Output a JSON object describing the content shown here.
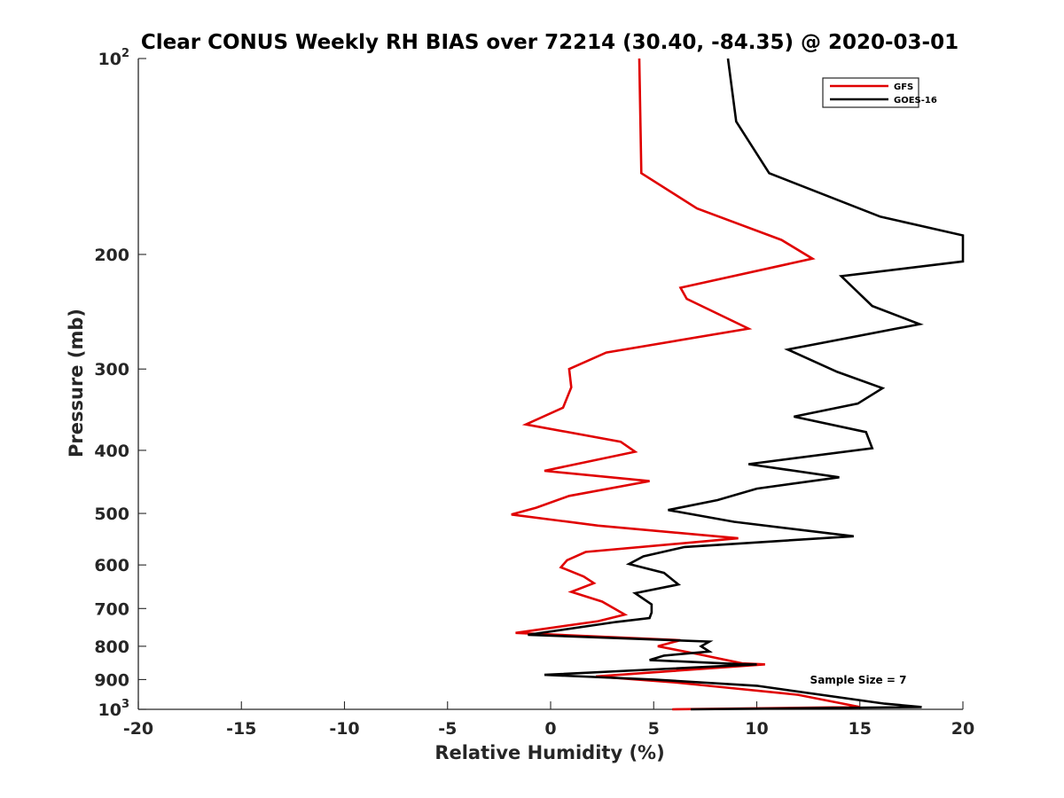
{
  "chart_data": {
    "type": "line",
    "title": "Clear CONUS Weekly RH BIAS over 72214 (30.40, -84.35) @ 2020-03-01",
    "xlabel": "Relative Humidity (%)",
    "ylabel": "Pressure (mb)",
    "xlim": [
      -20,
      20
    ],
    "ylim": [
      100,
      1000
    ],
    "yscale": "log",
    "y_reversed": true,
    "x_ticks": [
      -20,
      -15,
      -10,
      -5,
      0,
      5,
      10,
      15,
      20
    ],
    "x_tick_labels": [
      "-20",
      "-15",
      "-10",
      "-5",
      "0",
      "5",
      "10",
      "15",
      "20"
    ],
    "y_ticks": [
      100,
      200,
      300,
      400,
      500,
      600,
      700,
      800,
      900,
      1000
    ],
    "y_tick_labels": [
      {
        "base": "10",
        "exp": "2"
      },
      {
        "base": "200",
        "exp": ""
      },
      {
        "base": "300",
        "exp": ""
      },
      {
        "base": "400",
        "exp": ""
      },
      {
        "base": "500",
        "exp": ""
      },
      {
        "base": "600",
        "exp": ""
      },
      {
        "base": "700",
        "exp": ""
      },
      {
        "base": "800",
        "exp": ""
      },
      {
        "base": "900",
        "exp": ""
      },
      {
        "base": "10",
        "exp": "3"
      }
    ],
    "legend_position": "top-right",
    "annotation": "Sample Size = 7",
    "series": [
      {
        "name": "GFS",
        "color": "#e00000",
        "points": [
          [
            4.3,
            100
          ],
          [
            4.4,
            150
          ],
          [
            7.1,
            170
          ],
          [
            11.2,
            190
          ],
          [
            12.7,
            203
          ],
          [
            6.3,
            225
          ],
          [
            6.6,
            234
          ],
          [
            9.6,
            260
          ],
          [
            2.7,
            283
          ],
          [
            0.9,
            300
          ],
          [
            1.0,
            320
          ],
          [
            0.6,
            344
          ],
          [
            -1.2,
            365
          ],
          [
            3.4,
            388
          ],
          [
            4.1,
            402
          ],
          [
            -0.3,
            430
          ],
          [
            4.8,
            446
          ],
          [
            0.9,
            470
          ],
          [
            -0.7,
            490
          ],
          [
            -1.9,
            502
          ],
          [
            2.3,
            522
          ],
          [
            9.1,
            546
          ],
          [
            1.7,
            573
          ],
          [
            0.8,
            590
          ],
          [
            0.5,
            605
          ],
          [
            1.6,
            625
          ],
          [
            2.1,
            640
          ],
          [
            1.0,
            660
          ],
          [
            2.5,
            683
          ],
          [
            3.6,
            715
          ],
          [
            2.3,
            732
          ],
          [
            -1.7,
            763
          ],
          [
            6.3,
            783
          ],
          [
            5.2,
            800
          ],
          [
            7.1,
            822
          ],
          [
            9.3,
            850
          ],
          [
            10.4,
            853
          ],
          [
            2.2,
            890
          ],
          [
            6.0,
            909
          ],
          [
            12.0,
            950
          ],
          [
            15.0,
            992
          ],
          [
            5.9,
            1000
          ]
        ]
      },
      {
        "name": "GOES-16",
        "color": "#000000",
        "points": [
          [
            8.6,
            100
          ],
          [
            9.0,
            125
          ],
          [
            10.6,
            150
          ],
          [
            16.0,
            175
          ],
          [
            20.0,
            187
          ],
          [
            20.0,
            205
          ],
          [
            14.1,
            216
          ],
          [
            15.6,
            240
          ],
          [
            17.9,
            256
          ],
          [
            11.5,
            280
          ],
          [
            13.9,
            303
          ],
          [
            16.1,
            321
          ],
          [
            14.9,
            339
          ],
          [
            11.8,
            355
          ],
          [
            15.3,
            375
          ],
          [
            15.6,
            397
          ],
          [
            9.6,
            420
          ],
          [
            14.0,
            440
          ],
          [
            10.0,
            458
          ],
          [
            8.1,
            477
          ],
          [
            5.7,
            494
          ],
          [
            8.9,
            515
          ],
          [
            14.7,
            542
          ],
          [
            6.5,
            563
          ],
          [
            4.5,
            582
          ],
          [
            3.8,
            598
          ],
          [
            5.5,
            617
          ],
          [
            6.2,
            643
          ],
          [
            4.1,
            663
          ],
          [
            4.9,
            690
          ],
          [
            4.9,
            710
          ],
          [
            4.8,
            724
          ],
          [
            3.2,
            734
          ],
          [
            -1.1,
            768
          ],
          [
            7.7,
            787
          ],
          [
            7.3,
            800
          ],
          [
            7.7,
            815
          ],
          [
            5.5,
            827
          ],
          [
            4.8,
            840
          ],
          [
            9.1,
            852
          ],
          [
            10.0,
            853
          ],
          [
            -0.3,
            885
          ],
          [
            5.0,
            900
          ],
          [
            10.0,
            920
          ],
          [
            16.2,
            980
          ],
          [
            18.0,
            992
          ],
          [
            6.8,
            1000
          ]
        ]
      }
    ]
  }
}
